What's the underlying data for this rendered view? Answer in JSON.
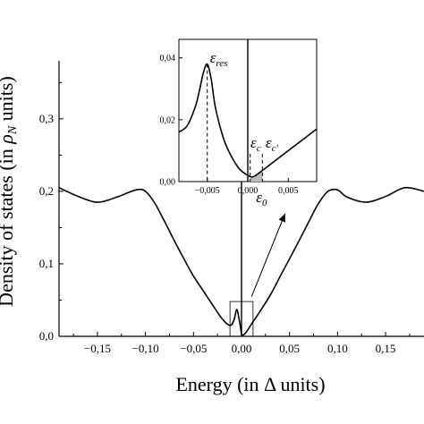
{
  "chart_data": [
    {
      "type": "line",
      "xlabel": "Energy (in Δ units)",
      "ylabel": "Density of states (in ρN units)",
      "xlim": [
        -0.19,
        0.19
      ],
      "ylim": [
        0.0,
        0.38
      ],
      "xticks": [
        -0.15,
        -0.1,
        -0.05,
        0.0,
        0.05,
        0.1,
        0.15
      ],
      "xtick_labels": [
        "−0,15",
        "−0,10",
        "−0,05",
        "0,00",
        "0,05",
        "0,10",
        "0,15"
      ],
      "yticks": [
        0.0,
        0.1,
        0.2,
        0.3
      ],
      "ytick_labels": [
        "0,0",
        "0,1",
        "0,2",
        "0,3"
      ],
      "grid": false,
      "legend": "none",
      "series": [
        {
          "x": [
            -0.19,
            -0.17,
            -0.15,
            -0.13,
            -0.11,
            -0.1,
            -0.09,
            -0.08,
            -0.07,
            -0.06,
            -0.05,
            -0.04,
            -0.03,
            -0.02,
            -0.012,
            -0.008,
            -0.005,
            -0.003,
            -0.001,
            0.0,
            0.002,
            0.005,
            0.01,
            0.02,
            0.03,
            0.04,
            0.05,
            0.06,
            0.07,
            0.08,
            0.09,
            0.1,
            0.11,
            0.13,
            0.15,
            0.17,
            0.19
          ],
          "y": [
            0.205,
            0.193,
            0.185,
            0.192,
            0.202,
            0.2,
            0.183,
            0.158,
            0.132,
            0.107,
            0.083,
            0.063,
            0.043,
            0.024,
            0.015,
            0.022,
            0.037,
            0.027,
            0.012,
            0.003,
            0.002,
            0.006,
            0.016,
            0.036,
            0.057,
            0.082,
            0.107,
            0.132,
            0.158,
            0.183,
            0.2,
            0.202,
            0.192,
            0.185,
            0.193,
            0.205,
            0.2
          ]
        }
      ]
    },
    {
      "type": "line",
      "role": "inset",
      "xlim": [
        -0.0085,
        0.0085
      ],
      "ylim": [
        0.0,
        0.046
      ],
      "xticks": [
        -0.005,
        0.0,
        0.005
      ],
      "xtick_labels": [
        "−0,005",
        "0,000",
        "0,005"
      ],
      "yticks": [
        0.0,
        0.02,
        0.04
      ],
      "ytick_labels": [
        "0,00",
        "0,02",
        "0,04"
      ],
      "grid": false,
      "series": [
        {
          "x": [
            -0.0085,
            -0.0075,
            -0.0065,
            -0.006,
            -0.0055,
            -0.005,
            -0.0045,
            -0.004,
            -0.003,
            -0.002,
            -0.001,
            0.0,
            0.0005,
            0.001,
            0.002,
            0.003,
            0.004,
            0.005,
            0.006,
            0.007,
            0.0085
          ],
          "y": [
            0.016,
            0.018,
            0.024,
            0.029,
            0.035,
            0.038,
            0.033,
            0.024,
            0.014,
            0.008,
            0.004,
            0.002,
            0.0015,
            0.002,
            0.004,
            0.006,
            0.008,
            0.01,
            0.012,
            0.014,
            0.017
          ]
        }
      ],
      "annotations": [
        {
          "symbol": "ε",
          "subscript": "res",
          "x": -0.005
        },
        {
          "symbol": "ε",
          "subscript": "c",
          "x": 0.0003
        },
        {
          "symbol": "ε",
          "subscript": "c'",
          "x": 0.0018
        },
        {
          "symbol": "ε",
          "subscript": "0",
          "x": 0.0008
        }
      ]
    }
  ]
}
